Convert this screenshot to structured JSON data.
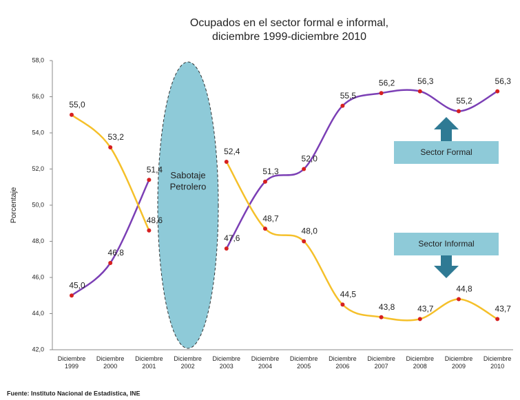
{
  "chart_data": {
    "type": "line",
    "title": "Ocupados en el sector formal e informal, diciembre 1999-diciembre 2010",
    "y_label": "Porcentaje",
    "source": "Fuente: Instituto Nacional de Estadística, INE",
    "annotations": [
      "Sabotaje Petrolero",
      "Sector Formal",
      "Sector Informal"
    ],
    "categories": [
      "Diciembre 1999",
      "Diciembre 2000",
      "Diciembre 2001",
      "Diciembre 2002",
      "Diciembre 2003",
      "Diciembre 2004",
      "Diciembre 2005",
      "Diciembre 2006",
      "Diciembre 2007",
      "Diciembre 2008",
      "Diciembre 2009",
      "Diciembre 2010"
    ],
    "series": [
      {
        "name": "Sector Formal",
        "color": "#7b3fb5",
        "values": [
          45.0,
          46.8,
          51.4,
          null,
          47.6,
          51.3,
          52.0,
          55.5,
          56.2,
          56.3,
          55.2,
          56.3
        ],
        "value_labels": [
          "45,0",
          "46,8",
          "51,4",
          null,
          "47,6",
          "51,3",
          "52,0",
          "55,5",
          "56,2",
          "56,3",
          "55,2",
          "56,3"
        ]
      },
      {
        "name": "Sector Informal",
        "color": "#f5c02a",
        "values": [
          55.0,
          53.2,
          48.6,
          null,
          52.4,
          48.7,
          48.0,
          44.5,
          43.8,
          43.7,
          44.8,
          43.7
        ],
        "value_labels": [
          "55,0",
          "53,2",
          "48,6",
          null,
          "52,4",
          "48,7",
          "48,0",
          "44,5",
          "43,8",
          "43,7",
          "44,8",
          "43,7"
        ]
      }
    ],
    "marker_color": "#d62020",
    "ylim": [
      42,
      58
    ],
    "yticks": [
      {
        "value": 42,
        "label": "42,0"
      },
      {
        "value": 44,
        "label": "44,0"
      },
      {
        "value": 46,
        "label": "46,0"
      },
      {
        "value": 48,
        "label": "48,0"
      },
      {
        "value": 50,
        "label": "50,0"
      },
      {
        "value": 52,
        "label": "52,0"
      },
      {
        "value": 54,
        "label": "54,0"
      },
      {
        "value": 56,
        "label": "56,0"
      },
      {
        "value": 58,
        "label": "58,0"
      }
    ]
  }
}
